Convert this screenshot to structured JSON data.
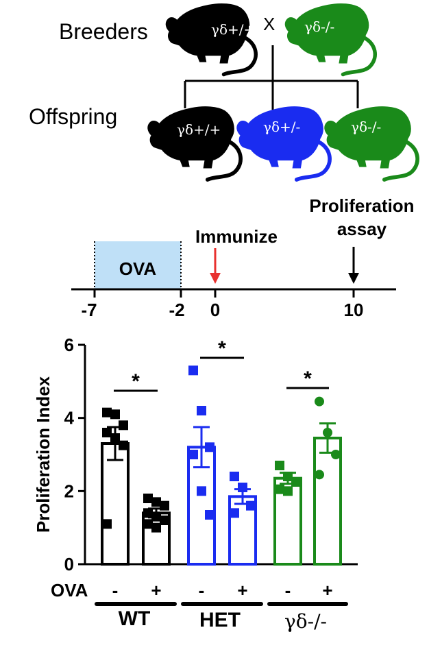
{
  "breeding": {
    "breeders_label": "Breeders",
    "offspring_label": "Offspring",
    "cross_symbol": "X",
    "genotype_wt": "γδ+/+",
    "genotype_het": "γδ+/-",
    "genotype_ko": "γδ-/-",
    "colors": {
      "wt": "#000000",
      "het": "#1a2cf0",
      "ko": "#1a8a1a"
    }
  },
  "timeline": {
    "ova_box_label": "OVA",
    "immunize_label": "Immunize",
    "proliferation_label_line1": "Proliferation",
    "proliferation_label_line2": "assay",
    "ticks": [
      "-7",
      "-2",
      "0",
      "10"
    ],
    "ova_box_color": "#bfe0f7",
    "immunize_arrow_color": "#e8312f"
  },
  "chart_data": {
    "type": "bar",
    "ylabel": "Proliferation Index",
    "ylim": [
      0,
      6
    ],
    "yticks": [
      "0",
      "2",
      "4",
      "6"
    ],
    "treatment_label": "OVA",
    "groups": [
      {
        "name": "WT",
        "color": "#000000",
        "marker": "square",
        "bars": [
          {
            "ova": "-",
            "mean": 3.3,
            "sem": 0.45,
            "points": [
              4.15,
              4.1,
              3.8,
              3.6,
              3.45,
              3.25,
              1.1
            ]
          },
          {
            "ova": "+",
            "mean": 1.4,
            "sem": 0.12,
            "points": [
              1.8,
              1.7,
              1.6,
              1.4,
              1.3,
              1.2,
              1.1,
              1.0
            ]
          }
        ],
        "significance": "*"
      },
      {
        "name": "HET",
        "color": "#1a2cf0",
        "marker": "square",
        "bars": [
          {
            "ova": "-",
            "mean": 3.2,
            "sem": 0.55,
            "points": [
              5.3,
              4.2,
              3.2,
              3.0,
              2.0,
              1.35
            ]
          },
          {
            "ova": "+",
            "mean": 1.85,
            "sem": 0.2,
            "points": [
              2.4,
              2.1,
              1.6,
              1.4
            ]
          }
        ],
        "significance": "*"
      },
      {
        "name": "γδ-/-",
        "color": "#1a8a1a",
        "marker": "mixed",
        "bars": [
          {
            "ova": "-",
            "mean": 2.35,
            "sem": 0.15,
            "points": [
              2.7,
              2.4,
              2.25,
              2.05,
              2.0
            ]
          },
          {
            "ova": "+",
            "mean": 3.45,
            "sem": 0.4,
            "points": [
              4.45,
              3.6,
              3.0,
              2.45
            ]
          }
        ],
        "significance": "*"
      }
    ]
  }
}
